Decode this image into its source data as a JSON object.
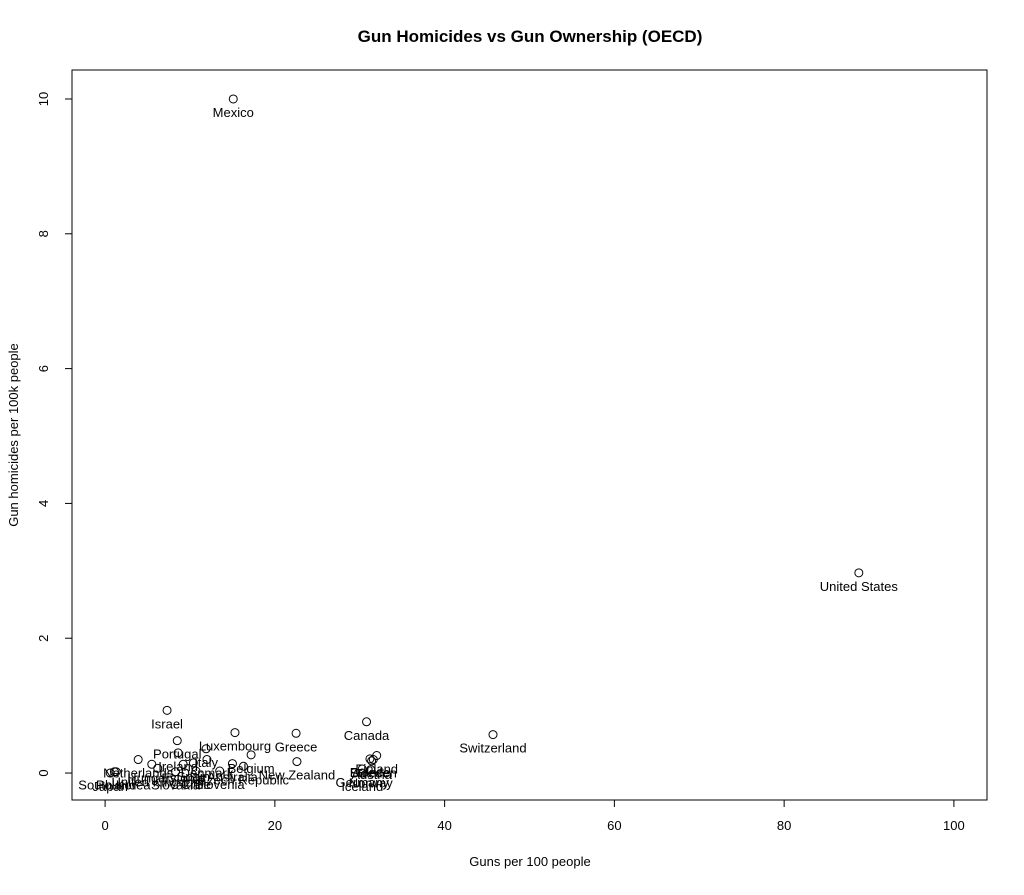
{
  "chart_data": {
    "type": "scatter",
    "title": "Gun Homicides vs Gun Ownership (OECD)",
    "x_label": "Guns per 100 people",
    "y_label": "Gun homicides per 100k people",
    "labels": [
      "Mexico",
      "United States",
      "Switzerland",
      "Canada",
      "Israel",
      "Greece",
      "Luxembourg",
      "Portugal",
      "Italy",
      "Ireland",
      "Belgium",
      "Finland",
      "Austria",
      "Sweden",
      "New Zealand",
      "Czech Republic",
      "Denmark",
      "Germany",
      "Norway",
      "Slovenia",
      "Slovakia",
      "Chile",
      "Netherlands",
      "Poland",
      "South Korea",
      "Japan",
      "United Kingdom",
      "Hungary",
      "Estonia",
      "Spain",
      "France",
      "Iceland",
      "Australia"
    ],
    "x": [
      15.1,
      88.8,
      45.7,
      30.8,
      7.3,
      22.5,
      15.3,
      8.5,
      11.9,
      8.6,
      17.2,
      32.0,
      31.4,
      31.6,
      22.6,
      16.3,
      12.0,
      30.3,
      31.3,
      13.5,
      8.3,
      10.7,
      3.9,
      1.3,
      1.1,
      0.6,
      6.2,
      5.5,
      9.2,
      10.4,
      31.2,
      30.3,
      15.0
    ],
    "y": [
      10.0,
      2.97,
      0.57,
      0.76,
      0.93,
      0.59,
      0.6,
      0.48,
      0.36,
      0.3,
      0.27,
      0.26,
      0.18,
      0.2,
      0.17,
      0.1,
      0.2,
      0.06,
      0.05,
      0.03,
      0.02,
      0.03,
      0.2,
      0.02,
      0.02,
      0.0,
      0.07,
      0.13,
      0.13,
      0.15,
      0.21,
      0.0,
      0.14
    ],
    "xlim": [
      -3.9,
      103.9
    ],
    "ylim": [
      -0.4,
      10.43
    ],
    "xticks": [
      0,
      20,
      40,
      60,
      80,
      100
    ],
    "yticks": [
      0,
      2,
      4,
      6,
      8,
      10
    ],
    "color": "#000000"
  }
}
